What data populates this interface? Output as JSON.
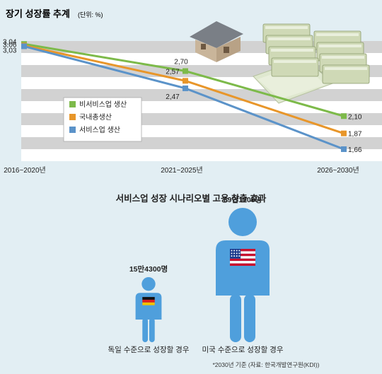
{
  "top_chart": {
    "title": "장기 성장률 추계",
    "unit_note": "(단위: %)"
  },
  "chart_data": [
    {
      "type": "line",
      "title": "장기 성장률 추계",
      "unit": "%",
      "x": [
        "2016~2020년",
        "2021~2025년",
        "2026~2030년"
      ],
      "series": [
        {
          "name": "비서비스업 생산",
          "color": "#7dba4a",
          "values": [
            3.06,
            2.7,
            2.1
          ],
          "labels": [
            "3,06",
            "2,70",
            "2,10"
          ]
        },
        {
          "name": "국내총생산",
          "color": "#e8962a",
          "values": [
            3.04,
            2.57,
            1.87
          ],
          "labels": [
            "3,04",
            "2,57",
            "1,87"
          ]
        },
        {
          "name": "서비스업 생산",
          "color": "#5b93c9",
          "values": [
            3.03,
            2.47,
            1.66
          ],
          "labels": [
            "3,03",
            "2,47",
            "1,66"
          ]
        }
      ],
      "legend_position": "center-left",
      "grid": true
    },
    {
      "type": "bar",
      "title": "서비스업 성장 시나리오별 고용 창출 효과",
      "categories": [
        "독일 수준으로 성장할 경우",
        "미국 수준으로 성장할 경우"
      ],
      "values": [
        154300,
        691700
      ],
      "value_labels": [
        "15만4300명",
        "69만1700명"
      ],
      "unit": "명",
      "flags": [
        "germany-flag",
        "usa-flag"
      ]
    }
  ],
  "bottom_chart": {
    "title": "서비스업 성장 시나리오별 고용 창출 효과",
    "footnote": "*2030년 기준 (자료: 한국개발연구원(KDI))"
  },
  "colors": {
    "background": "#e2eef3",
    "stripe_gray": "#d2d2d2",
    "stripe_white": "#ffffff",
    "person": "#4f9fdc"
  },
  "icons": [
    "house-icon",
    "money-stack-icon",
    "germany-flag-icon",
    "usa-flag-icon",
    "person-icon"
  ]
}
